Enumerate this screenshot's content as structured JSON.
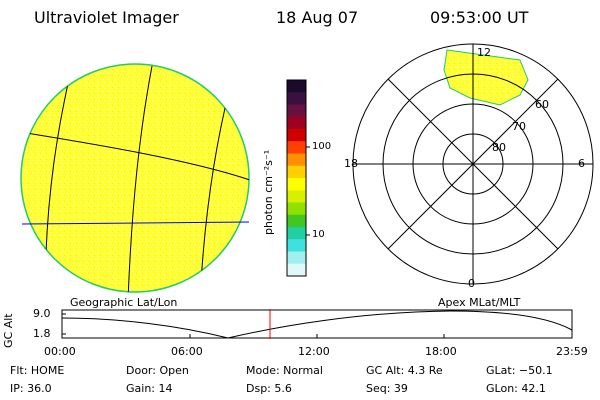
{
  "header": {
    "instrument": "Ultraviolet Imager",
    "date": "18 Aug 07",
    "time": "09:53:00 UT"
  },
  "colorbar": {
    "unit_label": "photon cm⁻²s⁻¹",
    "ticks": [
      "100",
      "10"
    ],
    "colors": [
      "#1a0a2e",
      "#3a1040",
      "#6a1040",
      "#a00020",
      "#d00000",
      "#ff4000",
      "#ff9000",
      "#ffd000",
      "#ffff00",
      "#d8f000",
      "#90e000",
      "#40c820",
      "#20d0a0",
      "#40e0e0",
      "#a0f0f0",
      "#e0f8f8"
    ]
  },
  "left_panel": {
    "label": "Geographic Lat/Lon",
    "disk_color": "#ffff33",
    "limb_color": "#00cc66"
  },
  "right_panel": {
    "label": "Apex MLat/MLT",
    "lat_labels": [
      "60",
      "70",
      "80"
    ],
    "mlt_labels": {
      "top": "12",
      "left": "18",
      "right": "6",
      "bottom": "0"
    }
  },
  "altitude_plot": {
    "ylabel": "GC Alt",
    "y_ticks": [
      "9.0",
      "1.8"
    ],
    "x_ticks": [
      "00:00",
      "06:00",
      "12:00",
      "18:00",
      "23:59"
    ],
    "marker_color": "#ff0000"
  },
  "info": {
    "flt": "Flt: HOME",
    "ip": "IP: 36.0",
    "door": "Door: Open",
    "gain": "Gain: 14",
    "mode": "Mode: Normal",
    "dsp": "Dsp:    5.6",
    "gc_alt": "GC Alt: 4.3 Re",
    "seq": "Seq: 39",
    "glat": "GLat: −50.1",
    "glon": "GLon:  42.1"
  }
}
